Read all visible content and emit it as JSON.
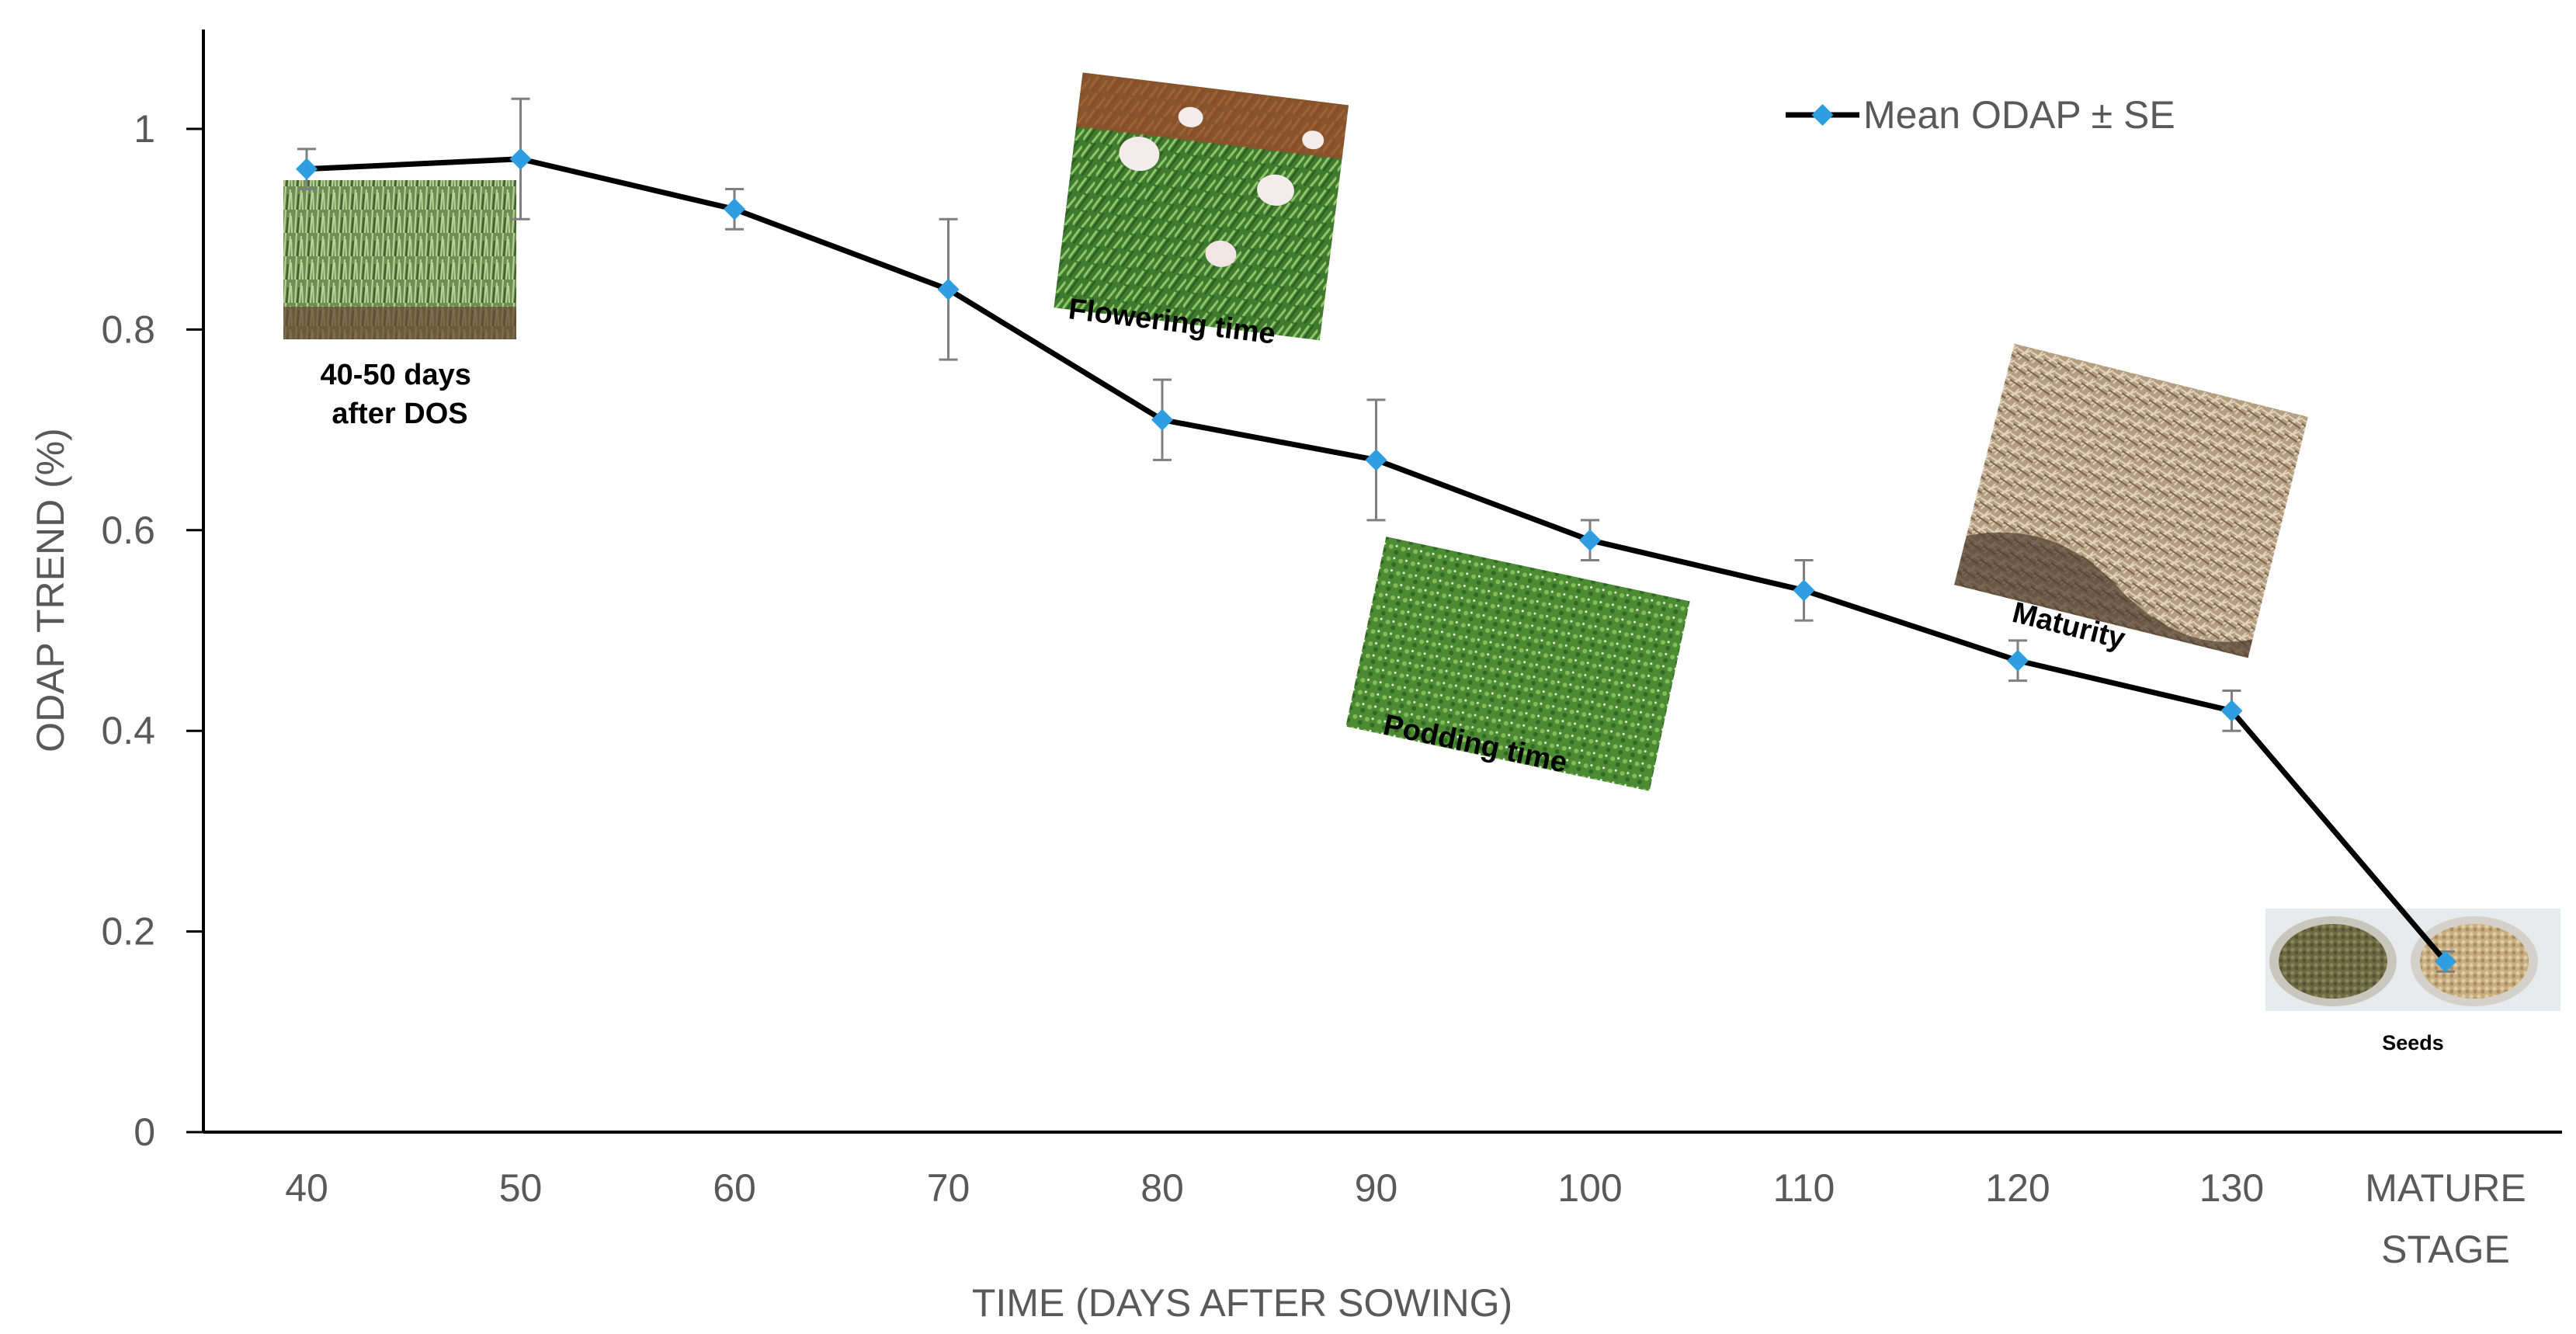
{
  "chart_data": {
    "type": "line",
    "title": "",
    "xlabel": "TIME (DAYS AFTER SOWING)",
    "ylabel": "ODAP TREND (%)",
    "ylim": [
      0,
      1.1
    ],
    "yticks": [
      "0",
      "0.2",
      "0.4",
      "0.6",
      "0.8",
      "1"
    ],
    "categories": [
      "40",
      "50",
      "60",
      "70",
      "80",
      "90",
      "100",
      "110",
      "120",
      "130",
      "MATURE STAGE"
    ],
    "category_lines": [
      [
        "40"
      ],
      [
        "50"
      ],
      [
        "60"
      ],
      [
        "70"
      ],
      [
        "80"
      ],
      [
        "90"
      ],
      [
        "100"
      ],
      [
        "110"
      ],
      [
        "120"
      ],
      [
        "130"
      ],
      [
        "MATURE",
        "STAGE"
      ]
    ],
    "series": [
      {
        "name": "Mean ODAP ± SE",
        "values": [
          0.96,
          0.97,
          0.92,
          0.84,
          0.71,
          0.67,
          0.59,
          0.54,
          0.47,
          0.42,
          0.17
        ],
        "errors": [
          0.02,
          0.06,
          0.02,
          0.07,
          0.04,
          0.06,
          0.02,
          0.03,
          0.02,
          0.02,
          0.01
        ]
      }
    ],
    "legend_position": "top-right",
    "grid": false,
    "colors": {
      "line": "#000000",
      "marker": "#2e9ee0",
      "axis": "#000000",
      "error_bar": "#7f7f7f"
    },
    "annotations": [
      {
        "id": "stage-early",
        "lines": [
          "40-50 days",
          "after DOS"
        ],
        "image": "young grass-pea plants in soil"
      },
      {
        "id": "stage-flowering",
        "lines": [
          "Flowering time"
        ],
        "image": "grass-pea plants with white flowers"
      },
      {
        "id": "stage-podding",
        "lines": [
          "Podding time"
        ],
        "image": "dense green field at podding"
      },
      {
        "id": "stage-maturity",
        "lines": [
          "Maturity"
        ],
        "image": "dry straw-coloured mature crop"
      },
      {
        "id": "stage-seeds",
        "lines": [
          "Seeds"
        ],
        "image": "two dishes of grass-pea seeds"
      }
    ]
  }
}
